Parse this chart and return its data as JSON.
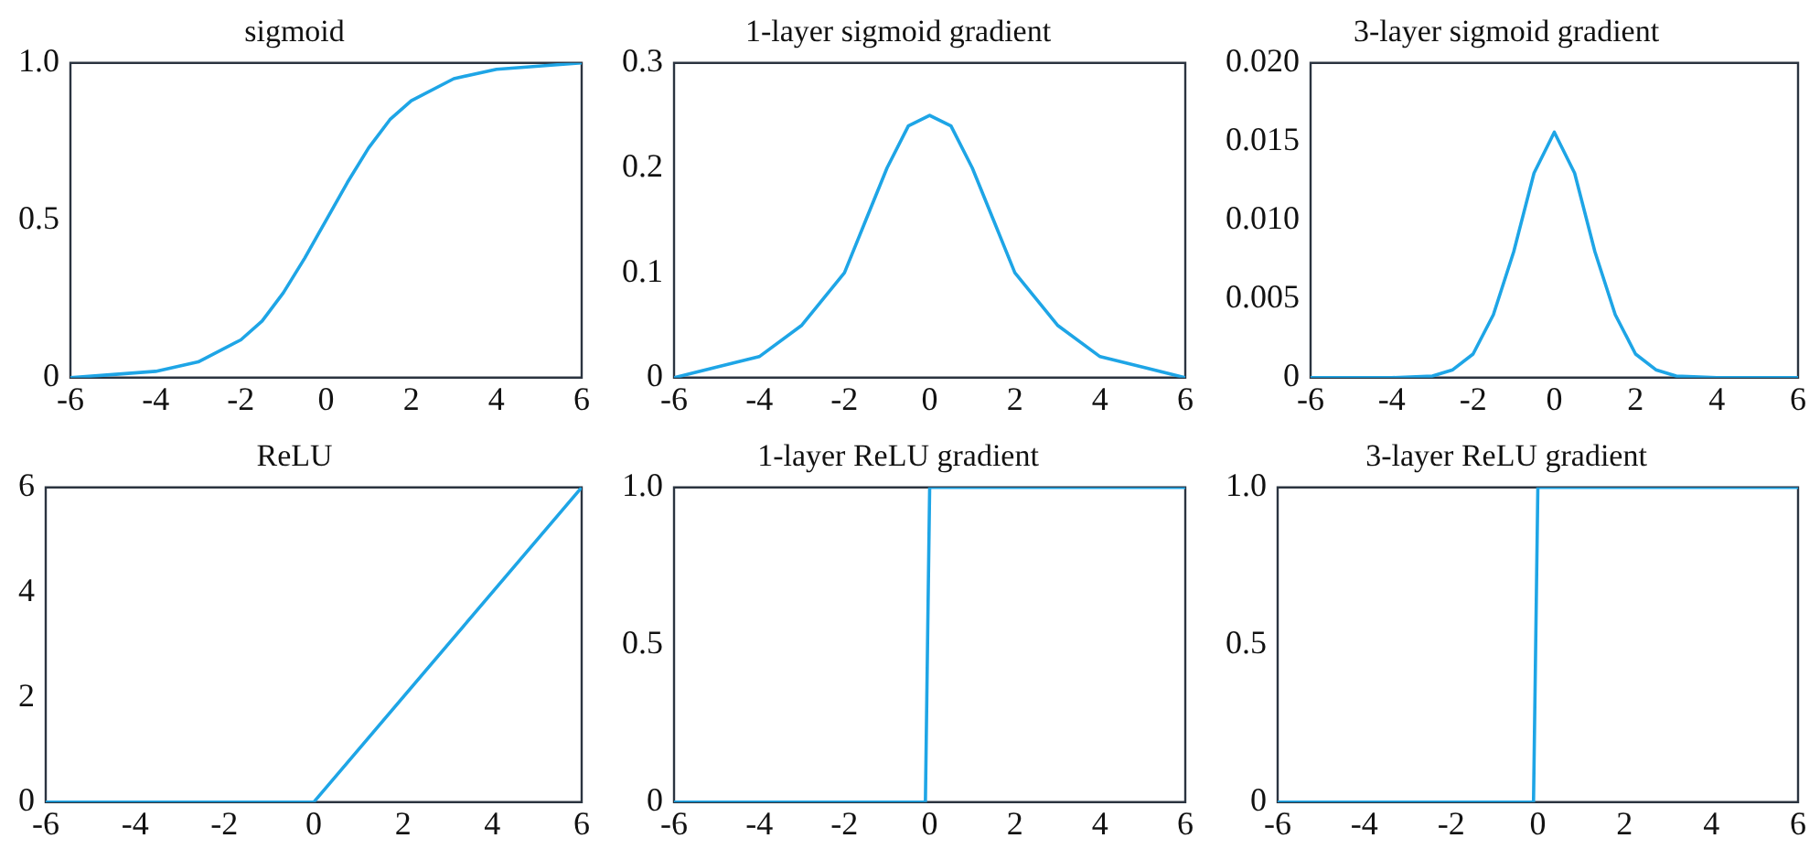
{
  "chart_data": [
    {
      "type": "line",
      "title": "sigmoid",
      "color": "#1ea5e6",
      "grid": false,
      "marker": "none",
      "xlim": [
        -6,
        6
      ],
      "xticks": [
        -6,
        -4,
        -2,
        0,
        2,
        4,
        6
      ],
      "ylim": [
        0,
        1
      ],
      "yticks": [
        {
          "value": 0,
          "label": "0"
        },
        {
          "value": 0.5,
          "label": "0.5"
        },
        {
          "value": 1,
          "label": "1.0"
        }
      ],
      "x": [
        -6,
        -5,
        -4,
        -3,
        -2,
        -1.5,
        -1,
        -0.5,
        0,
        0.5,
        1,
        1.5,
        2,
        3,
        4,
        5,
        6
      ],
      "values": [
        0.0,
        0.01,
        0.02,
        0.05,
        0.12,
        0.18,
        0.27,
        0.38,
        0.5,
        0.62,
        0.73,
        0.82,
        0.88,
        0.95,
        0.98,
        0.99,
        1.0
      ]
    },
    {
      "type": "line",
      "title": "1-layer sigmoid gradient",
      "color": "#1ea5e6",
      "grid": false,
      "marker": "none",
      "xlim": [
        -6,
        6
      ],
      "xticks": [
        -6,
        -4,
        -2,
        0,
        2,
        4,
        6
      ],
      "ylim": [
        0,
        0.3
      ],
      "yticks": [
        {
          "value": 0,
          "label": "0"
        },
        0.1,
        0.2,
        0.3
      ],
      "x": [
        -6,
        -5,
        -4,
        -3,
        -2,
        -1.5,
        -1,
        -0.5,
        0,
        0.5,
        1,
        1.5,
        2,
        3,
        4,
        5,
        6
      ],
      "values": [
        0.0,
        0.01,
        0.02,
        0.05,
        0.1,
        0.15,
        0.2,
        0.24,
        0.25,
        0.24,
        0.2,
        0.15,
        0.1,
        0.05,
        0.02,
        0.01,
        0.0
      ]
    },
    {
      "type": "line",
      "title": "3-layer sigmoid gradient",
      "color": "#1ea5e6",
      "grid": false,
      "marker": "none",
      "xlim": [
        -6,
        6
      ],
      "xticks": [
        -6,
        -4,
        -2,
        0,
        2,
        4,
        6
      ],
      "ylim": [
        0,
        0.02
      ],
      "yticks": [
        {
          "value": 0,
          "label": "0"
        },
        {
          "value": 0.005,
          "label": "0.005"
        },
        {
          "value": 0.01,
          "label": "0.010"
        },
        {
          "value": 0.015,
          "label": "0.015"
        },
        {
          "value": 0.02,
          "label": "0.020"
        }
      ],
      "x": [
        -6,
        -4,
        -3,
        -2.5,
        -2,
        -1.5,
        -1,
        -0.5,
        0,
        0.5,
        1,
        1.5,
        2,
        2.5,
        3,
        4,
        6
      ],
      "values": [
        0,
        0,
        0.0001,
        0.0005,
        0.0015,
        0.004,
        0.008,
        0.013,
        0.0156,
        0.013,
        0.008,
        0.004,
        0.0015,
        0.0005,
        0.0001,
        0,
        0
      ]
    },
    {
      "type": "line",
      "title": "ReLU",
      "color": "#1ea5e6",
      "grid": false,
      "marker": "none",
      "xlim": [
        -6,
        6
      ],
      "xticks": [
        -6,
        -4,
        -2,
        0,
        2,
        4,
        6
      ],
      "ylim": [
        0,
        6
      ],
      "yticks": [
        0,
        2,
        4,
        6
      ],
      "x": [
        -6,
        0,
        6
      ],
      "values": [
        0,
        0,
        6
      ]
    },
    {
      "type": "line",
      "title": "1-layer ReLU gradient",
      "color": "#1ea5e6",
      "grid": false,
      "marker": "none",
      "xlim": [
        -6,
        6
      ],
      "xticks": [
        -6,
        -4,
        -2,
        0,
        2,
        4,
        6
      ],
      "ylim": [
        0,
        1
      ],
      "yticks": [
        {
          "value": 0,
          "label": "0"
        },
        {
          "value": 0.5,
          "label": "0.5"
        },
        {
          "value": 1,
          "label": "1.0"
        }
      ],
      "x": [
        -6,
        -0.1,
        0,
        6
      ],
      "values": [
        0,
        0,
        1,
        1
      ]
    },
    {
      "type": "line",
      "title": "3-layer ReLU gradient",
      "color": "#1ea5e6",
      "grid": false,
      "marker": "none",
      "xlim": [
        -6,
        6
      ],
      "xticks": [
        -6,
        -4,
        -2,
        0,
        2,
        4,
        6
      ],
      "ylim": [
        0,
        1
      ],
      "yticks": [
        {
          "value": 0,
          "label": "0"
        },
        {
          "value": 0.5,
          "label": "0.5"
        },
        {
          "value": 1,
          "label": "1.0"
        }
      ],
      "x": [
        -6,
        -0.1,
        0,
        6
      ],
      "values": [
        0,
        0,
        1,
        1
      ]
    }
  ]
}
